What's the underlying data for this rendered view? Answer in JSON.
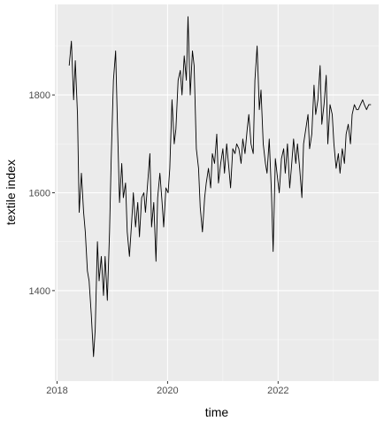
{
  "chart_data": {
    "type": "line",
    "title": "",
    "xlabel": "time",
    "ylabel": "textile index",
    "x_ticks": [
      2018,
      2020,
      2022
    ],
    "y_ticks": [
      1400,
      1600,
      1800
    ],
    "xlim": [
      2017.96,
      2023.82
    ],
    "ylim": [
      1215,
      1985
    ],
    "grid": true,
    "legend": "none",
    "colors": {
      "panel": "#ebebeb",
      "grid_major": "#ffffff",
      "line": "#000000",
      "tick_text": "#4d4d4d",
      "axis_title": "#000000"
    },
    "series": [
      {
        "x": [
          2018.22,
          2018.26,
          2018.3,
          2018.33,
          2018.37,
          2018.4,
          2018.44,
          2018.48,
          2018.51,
          2018.55,
          2018.58,
          2018.62,
          2018.66,
          2018.69,
          2018.73,
          2018.76,
          2018.8,
          2018.84,
          2018.87,
          2018.91,
          2018.95,
          2018.98,
          2019.02,
          2019.06,
          2019.09,
          2019.13,
          2019.17,
          2019.2,
          2019.24,
          2019.27,
          2019.31,
          2019.35,
          2019.38,
          2019.42,
          2019.46,
          2019.49,
          2019.53,
          2019.57,
          2019.6,
          2019.64,
          2019.68,
          2019.71,
          2019.75,
          2019.79,
          2019.82,
          2019.86,
          2019.9,
          2019.93,
          2019.97,
          2020.01,
          2020.04,
          2020.08,
          2020.12,
          2020.15,
          2020.19,
          2020.23,
          2020.26,
          2020.3,
          2020.34,
          2020.37,
          2020.41,
          2020.45,
          2020.48,
          2020.52,
          2020.56,
          2020.59,
          2020.63,
          2020.67,
          2020.7,
          2020.74,
          2020.78,
          2020.81,
          2020.85,
          2020.89,
          2020.92,
          2020.96,
          2021.0,
          2021.03,
          2021.07,
          2021.11,
          2021.14,
          2021.18,
          2021.22,
          2021.25,
          2021.29,
          2021.33,
          2021.36,
          2021.4,
          2021.44,
          2021.47,
          2021.51,
          2021.55,
          2021.58,
          2021.62,
          2021.66,
          2021.69,
          2021.73,
          2021.77,
          2021.8,
          2021.84,
          2021.88,
          2021.91,
          2021.95,
          2021.99,
          2022.02,
          2022.06,
          2022.1,
          2022.13,
          2022.17,
          2022.21,
          2022.24,
          2022.28,
          2022.32,
          2022.35,
          2022.39,
          2022.43,
          2022.46,
          2022.5,
          2022.54,
          2022.57,
          2022.61,
          2022.65,
          2022.68,
          2022.72,
          2022.76,
          2022.79,
          2022.83,
          2022.87,
          2022.9,
          2022.94,
          2022.98,
          2023.01,
          2023.05,
          2023.09,
          2023.12,
          2023.16,
          2023.2,
          2023.23,
          2023.27,
          2023.31,
          2023.34,
          2023.38,
          2023.42,
          2023.45,
          2023.49,
          2023.53,
          2023.56,
          2023.6,
          2023.64,
          2023.68
        ],
        "y": [
          1860,
          1910,
          1790,
          1870,
          1760,
          1560,
          1640,
          1560,
          1520,
          1440,
          1420,
          1350,
          1265,
          1320,
          1500,
          1420,
          1470,
          1390,
          1470,
          1380,
          1520,
          1670,
          1830,
          1890,
          1750,
          1580,
          1660,
          1590,
          1620,
          1520,
          1470,
          1540,
          1600,
          1530,
          1580,
          1510,
          1590,
          1600,
          1560,
          1620,
          1680,
          1530,
          1580,
          1460,
          1590,
          1640,
          1580,
          1530,
          1610,
          1600,
          1650,
          1790,
          1700,
          1730,
          1830,
          1850,
          1800,
          1880,
          1830,
          1960,
          1800,
          1890,
          1860,
          1690,
          1650,
          1570,
          1520,
          1590,
          1620,
          1650,
          1610,
          1680,
          1660,
          1720,
          1620,
          1660,
          1690,
          1640,
          1700,
          1650,
          1610,
          1690,
          1680,
          1700,
          1690,
          1660,
          1710,
          1680,
          1730,
          1760,
          1700,
          1680,
          1830,
          1900,
          1770,
          1810,
          1700,
          1660,
          1640,
          1710,
          1600,
          1480,
          1670,
          1630,
          1600,
          1670,
          1690,
          1640,
          1700,
          1610,
          1650,
          1710,
          1660,
          1700,
          1650,
          1590,
          1700,
          1730,
          1760,
          1690,
          1720,
          1820,
          1760,
          1790,
          1860,
          1740,
          1780,
          1840,
          1700,
          1780,
          1760,
          1700,
          1650,
          1680,
          1640,
          1690,
          1660,
          1720,
          1740,
          1700,
          1760,
          1780,
          1770,
          1770,
          1780,
          1790,
          1780,
          1770,
          1780,
          1780
        ]
      }
    ]
  }
}
